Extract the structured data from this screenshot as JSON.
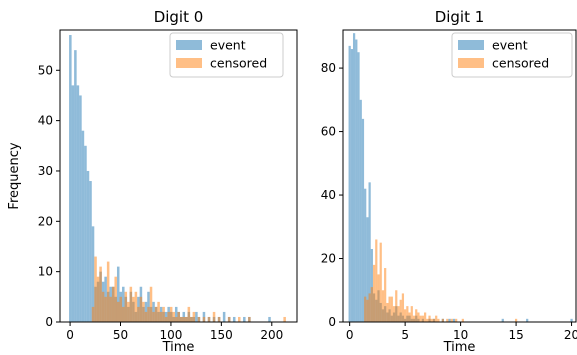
{
  "chart_data": [
    {
      "type": "bar",
      "subtype": "histogram",
      "title": "Digit 0",
      "xlabel": "Time",
      "ylabel": "Frequency",
      "xlim": [
        -10,
        225
      ],
      "ylim": [
        0,
        58
      ],
      "xticks": [
        0,
        50,
        100,
        150,
        200
      ],
      "yticks": [
        0,
        10,
        20,
        30,
        40,
        50
      ],
      "bin_width": 2.5,
      "grid": false,
      "legend_position": "top-right",
      "colors": {
        "event": "#1f77b4",
        "censored": "#ff7f0e"
      },
      "series": [
        {
          "name": "event",
          "bins": [
            [
              -1,
              57
            ],
            [
              1.5,
              47
            ],
            [
              4,
              54
            ],
            [
              6.5,
              47
            ],
            [
              9,
              45
            ],
            [
              11.5,
              38
            ],
            [
              14,
              35
            ],
            [
              16.5,
              30
            ],
            [
              19,
              28
            ],
            [
              21.5,
              19
            ],
            [
              24,
              7
            ],
            [
              26.5,
              8
            ],
            [
              29,
              10
            ],
            [
              31.5,
              8
            ],
            [
              34,
              9
            ],
            [
              36.5,
              6
            ],
            [
              39,
              7
            ],
            [
              41.5,
              7
            ],
            [
              44,
              5
            ],
            [
              46.5,
              11
            ],
            [
              49,
              6
            ],
            [
              51.5,
              7
            ],
            [
              54,
              5
            ],
            [
              56.5,
              3
            ],
            [
              59,
              6
            ],
            [
              61.5,
              4
            ],
            [
              64,
              2
            ],
            [
              66.5,
              5
            ],
            [
              69,
              7
            ],
            [
              71.5,
              3
            ],
            [
              74,
              4
            ],
            [
              76.5,
              6
            ],
            [
              79,
              3
            ],
            [
              81.5,
              4
            ],
            [
              84,
              3
            ],
            [
              86.5,
              2
            ],
            [
              89,
              3
            ],
            [
              91.5,
              2
            ],
            [
              94,
              2
            ],
            [
              96.5,
              3
            ],
            [
              99,
              2
            ],
            [
              101.5,
              1
            ],
            [
              104,
              3
            ],
            [
              106.5,
              2
            ],
            [
              109,
              1
            ],
            [
              111.5,
              2
            ],
            [
              114,
              1
            ],
            [
              116.5,
              2
            ],
            [
              119,
              1
            ],
            [
              121.5,
              1
            ],
            [
              124,
              2
            ],
            [
              126.5,
              1
            ],
            [
              131.5,
              2
            ],
            [
              136.5,
              1
            ],
            [
              141.5,
              1
            ],
            [
              146.5,
              1
            ],
            [
              151.5,
              2
            ],
            [
              156.5,
              1
            ],
            [
              161.5,
              1
            ],
            [
              171.5,
              1
            ],
            [
              176.5,
              1
            ],
            [
              196.5,
              1
            ]
          ]
        },
        {
          "name": "censored",
          "bins": [
            [
              21.5,
              3
            ],
            [
              24,
              13
            ],
            [
              26.5,
              9
            ],
            [
              29,
              11
            ],
            [
              31.5,
              6
            ],
            [
              34,
              5
            ],
            [
              36.5,
              12
            ],
            [
              39,
              5
            ],
            [
              41.5,
              7
            ],
            [
              44,
              9
            ],
            [
              46.5,
              4
            ],
            [
              49,
              5
            ],
            [
              51.5,
              3
            ],
            [
              54,
              6
            ],
            [
              56.5,
              4
            ],
            [
              59,
              7
            ],
            [
              61.5,
              5
            ],
            [
              64,
              6
            ],
            [
              66.5,
              3
            ],
            [
              69,
              5
            ],
            [
              71.5,
              4
            ],
            [
              74,
              2
            ],
            [
              76.5,
              3
            ],
            [
              79,
              7
            ],
            [
              81.5,
              2
            ],
            [
              84,
              3
            ],
            [
              86.5,
              4
            ],
            [
              89,
              2
            ],
            [
              91.5,
              3
            ],
            [
              94,
              1
            ],
            [
              96.5,
              2
            ],
            [
              99,
              3
            ],
            [
              101.5,
              2
            ],
            [
              104,
              1
            ],
            [
              106.5,
              2
            ],
            [
              109,
              1
            ],
            [
              111.5,
              1
            ],
            [
              114,
              1
            ],
            [
              116.5,
              3
            ],
            [
              119,
              1
            ],
            [
              121.5,
              2
            ],
            [
              126.5,
              1
            ],
            [
              131.5,
              1
            ],
            [
              136.5,
              1
            ],
            [
              141.5,
              2
            ],
            [
              146.5,
              1
            ],
            [
              156.5,
              1
            ],
            [
              166.5,
              1
            ],
            [
              176.5,
              1
            ],
            [
              211.5,
              1
            ]
          ]
        }
      ]
    },
    {
      "type": "bar",
      "subtype": "histogram",
      "title": "Digit 1",
      "xlabel": "Time",
      "ylabel": "",
      "xlim": [
        -0.6,
        20.4
      ],
      "ylim": [
        0,
        92
      ],
      "xticks": [
        0,
        5,
        10,
        15,
        20
      ],
      "yticks": [
        0,
        20,
        40,
        60,
        80
      ],
      "bin_width": 0.2,
      "grid": false,
      "legend_position": "top-right",
      "colors": {
        "event": "#1f77b4",
        "censored": "#ff7f0e"
      },
      "series": [
        {
          "name": "event",
          "bins": [
            [
              -0.1,
              87
            ],
            [
              0.1,
              86
            ],
            [
              0.3,
              91
            ],
            [
              0.5,
              89
            ],
            [
              0.7,
              85
            ],
            [
              0.9,
              70
            ],
            [
              1.1,
              64
            ],
            [
              1.3,
              42
            ],
            [
              1.5,
              33
            ],
            [
              1.7,
              44
            ],
            [
              1.9,
              23
            ],
            [
              2.1,
              9
            ],
            [
              2.3,
              7
            ],
            [
              2.5,
              10
            ],
            [
              2.7,
              6
            ],
            [
              2.9,
              4
            ],
            [
              3.1,
              5
            ],
            [
              3.3,
              3
            ],
            [
              3.5,
              4
            ],
            [
              3.7,
              2
            ],
            [
              3.9,
              3
            ],
            [
              4.1,
              5
            ],
            [
              4.3,
              2
            ],
            [
              4.5,
              3
            ],
            [
              4.7,
              2
            ],
            [
              4.9,
              1
            ],
            [
              5.1,
              2
            ],
            [
              5.3,
              2
            ],
            [
              5.5,
              1
            ],
            [
              5.7,
              1
            ],
            [
              5.9,
              2
            ],
            [
              6.1,
              1
            ],
            [
              6.5,
              1
            ],
            [
              7.1,
              1
            ],
            [
              7.5,
              1
            ],
            [
              8.3,
              1
            ],
            [
              8.9,
              1
            ],
            [
              9.3,
              1
            ],
            [
              13.7,
              1
            ],
            [
              15.9,
              1
            ],
            [
              19.9,
              1
            ]
          ]
        },
        {
          "name": "censored",
          "bins": [
            [
              1.3,
              8
            ],
            [
              1.5,
              7
            ],
            [
              1.7,
              9
            ],
            [
              1.9,
              11
            ],
            [
              2.1,
              18
            ],
            [
              2.3,
              26
            ],
            [
              2.5,
              15
            ],
            [
              2.7,
              25
            ],
            [
              2.9,
              10
            ],
            [
              3.1,
              17
            ],
            [
              3.3,
              6
            ],
            [
              3.5,
              8
            ],
            [
              3.7,
              8
            ],
            [
              3.9,
              5
            ],
            [
              4.1,
              10
            ],
            [
              4.3,
              5
            ],
            [
              4.5,
              7
            ],
            [
              4.7,
              9
            ],
            [
              4.9,
              4
            ],
            [
              5.1,
              5
            ],
            [
              5.3,
              3
            ],
            [
              5.5,
              5
            ],
            [
              5.7,
              2
            ],
            [
              5.9,
              4
            ],
            [
              6.1,
              3
            ],
            [
              6.3,
              2
            ],
            [
              6.5,
              2
            ],
            [
              6.7,
              3
            ],
            [
              6.9,
              1
            ],
            [
              7.1,
              2
            ],
            [
              7.3,
              1
            ],
            [
              7.5,
              1
            ],
            [
              7.7,
              2
            ],
            [
              7.9,
              1
            ],
            [
              8.3,
              1
            ],
            [
              8.7,
              1
            ],
            [
              9.1,
              1
            ],
            [
              9.5,
              1
            ],
            [
              10.1,
              1
            ],
            [
              14.9,
              1
            ]
          ]
        }
      ]
    }
  ]
}
